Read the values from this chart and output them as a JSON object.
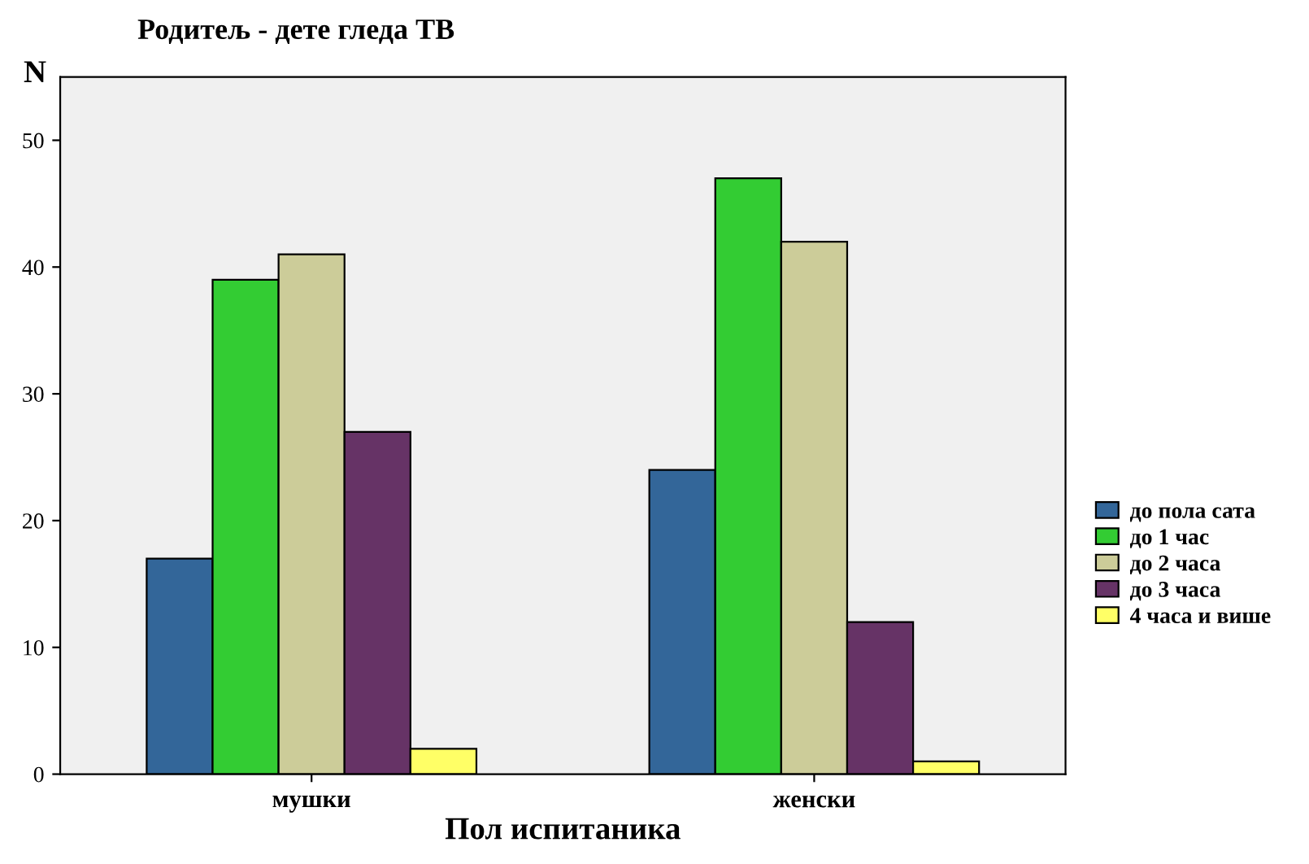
{
  "chart_data": {
    "type": "bar",
    "title": "Родитељ - дете гледа ТВ",
    "xlabel": "Пол испитаника",
    "ylabel": "N",
    "categories": [
      "мушки",
      "женски"
    ],
    "series": [
      {
        "name": "до пола сата",
        "color": "#336699",
        "values": [
          17,
          24
        ]
      },
      {
        "name": "до 1 час",
        "color": "#33cc33",
        "values": [
          39,
          47
        ]
      },
      {
        "name": "до 2 часа",
        "color": "#cccc99",
        "values": [
          41,
          42
        ]
      },
      {
        "name": "до 3 часа",
        "color": "#663366",
        "values": [
          27,
          12
        ]
      },
      {
        "name": "4 часа и више",
        "color": "#ffff66",
        "values": [
          2,
          1
        ]
      }
    ],
    "ylim": [
      0,
      55
    ],
    "yticks": [
      0,
      10,
      20,
      30,
      40,
      50
    ],
    "grid": false,
    "legend": "right"
  }
}
